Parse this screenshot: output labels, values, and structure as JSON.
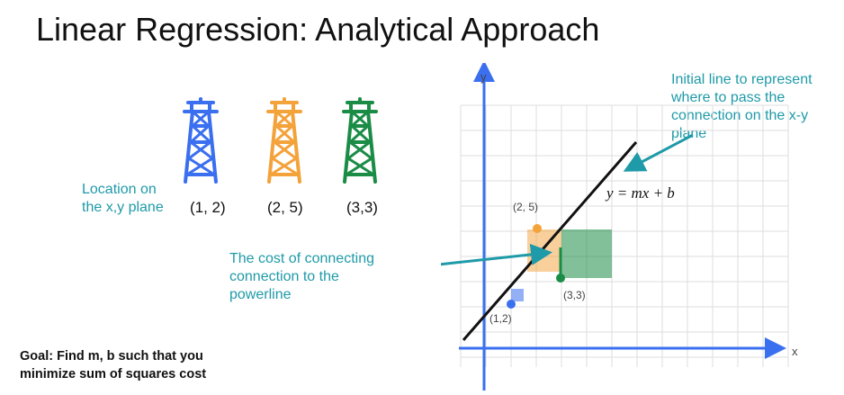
{
  "title": "Linear Regression: Analytical Approach",
  "location_label": [
    "Location on",
    "the x,y plane"
  ],
  "towers": [
    {
      "coord_label": "(1, 2)",
      "color": "#3a6ff0"
    },
    {
      "coord_label": "(2, 5)",
      "color": "#f4a23a"
    },
    {
      "coord_label": "(3,3)",
      "color": "#1a8c46"
    }
  ],
  "cost_label": [
    "The cost of connecting",
    "connection to the",
    "powerline"
  ],
  "initial_line_label": [
    "Initial line to represent",
    "where to pass the",
    "connection on the x-y",
    "plane"
  ],
  "goal": [
    "Goal: Find m, b such that you",
    "minimize sum of squares cost"
  ],
  "plot": {
    "y_axis_label": "y",
    "x_axis_label": "x",
    "equation": "y = mx + b",
    "point_labels": [
      "(1,2)",
      "(2, 5)",
      "(3,3)"
    ]
  },
  "colors": {
    "teal": "#1f9aa8",
    "blue": "#3a6ff0",
    "orange": "#f4a23a",
    "green": "#1a8c46",
    "grid": "#dddddd"
  }
}
